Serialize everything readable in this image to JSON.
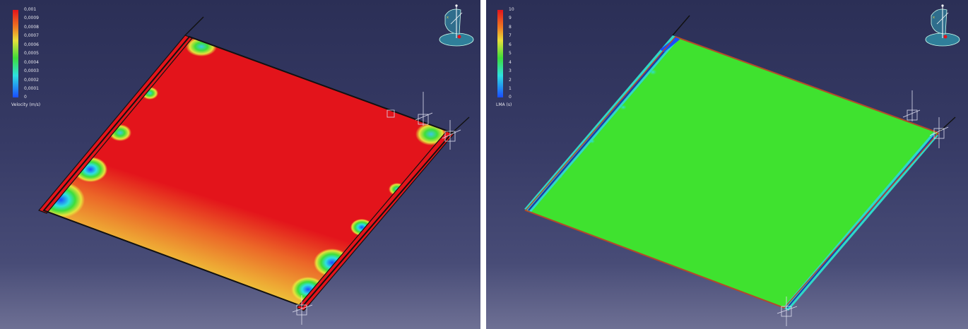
{
  "left_view": {
    "legend": {
      "ticks": [
        "0,001",
        "0,0009",
        "0,0008",
        "0,0007",
        "0,0006",
        "0,0005",
        "0,0004",
        "0,0003",
        "0,0002",
        "0,0001",
        "0"
      ],
      "unit": "Velocity (m/s)"
    }
  },
  "right_view": {
    "legend": {
      "ticks": [
        "10",
        "9",
        "8",
        "7",
        "6",
        "5",
        "4",
        "3",
        "2",
        "1",
        "0"
      ],
      "unit": "LMA (s)"
    }
  },
  "colors": {
    "background_top": "#2b2f56",
    "background_bottom": "#6e7094",
    "velocity_high": "#e3141b",
    "velocity_mid": "#e8e03a",
    "lma_field": "#3fe22f",
    "inlet_strip": "#e3141b"
  },
  "icons": [
    "compass-icon",
    "axis-triad-icon"
  ]
}
